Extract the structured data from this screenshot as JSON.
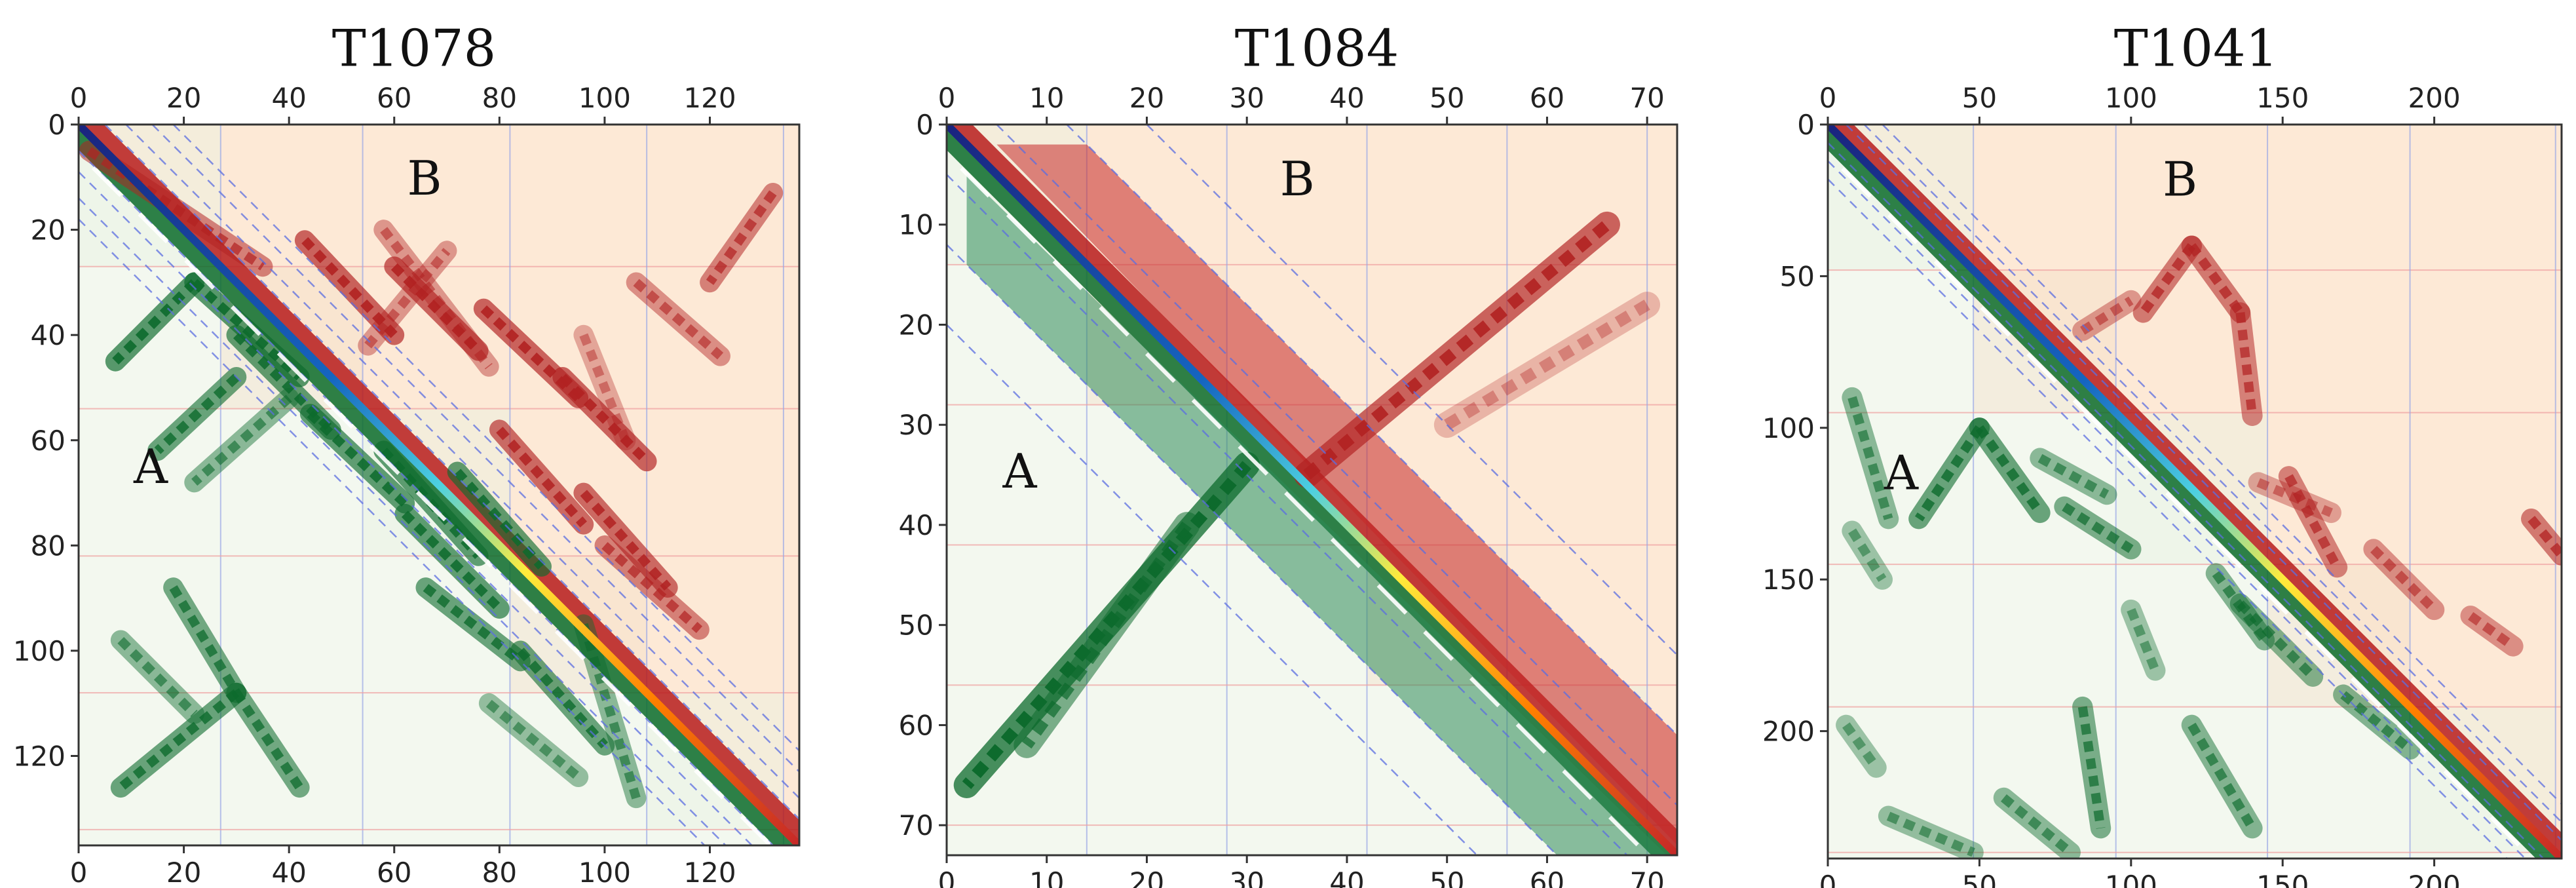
{
  "chart_data": [
    {
      "type": "heatmap",
      "title": "T1078",
      "xlabel": "",
      "ylabel": "",
      "xlim": [
        0,
        137
      ],
      "ylim": [
        0,
        137
      ],
      "x_ticks": [
        0,
        20,
        40,
        60,
        80,
        100,
        120
      ],
      "y_ticks": [
        0,
        20,
        40,
        60,
        80,
        100,
        120
      ],
      "region_labels": {
        "upper": "B",
        "lower": "A"
      },
      "grid": true,
      "offset_diagonals": [
        5,
        9,
        14,
        18
      ],
      "domain_boundaries": [
        27,
        54,
        82,
        108,
        134
      ],
      "upper_contacts": [
        {
          "from": [
            5,
            2
          ],
          "to": [
            27,
            35
          ],
          "w": 0.7
        },
        {
          "from": [
            22,
            43
          ],
          "to": [
            40,
            60
          ],
          "w": 0.9
        },
        {
          "from": [
            27,
            60
          ],
          "to": [
            43,
            76
          ],
          "w": 0.9
        },
        {
          "from": [
            35,
            77
          ],
          "to": [
            52,
            95
          ],
          "w": 0.9
        },
        {
          "from": [
            48,
            92
          ],
          "to": [
            64,
            108
          ],
          "w": 0.9
        },
        {
          "from": [
            58,
            80
          ],
          "to": [
            76,
            96
          ],
          "w": 0.85
        },
        {
          "from": [
            70,
            96
          ],
          "to": [
            88,
            112
          ],
          "w": 0.85
        },
        {
          "from": [
            80,
            100
          ],
          "to": [
            96,
            118
          ],
          "w": 0.7
        },
        {
          "from": [
            20,
            58
          ],
          "to": [
            46,
            78
          ],
          "w": 0.55
        },
        {
          "from": [
            42,
            55
          ],
          "to": [
            24,
            70
          ],
          "w": 0.55
        },
        {
          "from": [
            30,
            106
          ],
          "to": [
            44,
            122
          ],
          "w": 0.6
        },
        {
          "from": [
            13,
            132
          ],
          "to": [
            30,
            120
          ],
          "w": 0.7
        },
        {
          "from": [
            40,
            96
          ],
          "to": [
            60,
            104
          ],
          "w": 0.45
        }
      ],
      "lower_contacts": [
        {
          "from": [
            30,
            22
          ],
          "to": [
            45,
            7
          ],
          "w": 0.9
        },
        {
          "from": [
            30,
            22
          ],
          "to": [
            48,
            42
          ],
          "w": 0.9
        },
        {
          "from": [
            40,
            30
          ],
          "to": [
            58,
            48
          ],
          "w": 0.85
        },
        {
          "from": [
            48,
            30
          ],
          "to": [
            62,
            15
          ],
          "w": 0.8
        },
        {
          "from": [
            55,
            44
          ],
          "to": [
            72,
            62
          ],
          "w": 0.85
        },
        {
          "from": [
            62,
            58
          ],
          "to": [
            82,
            76
          ],
          "w": 0.85
        },
        {
          "from": [
            66,
            72
          ],
          "to": [
            84,
            88
          ],
          "w": 0.85
        },
        {
          "from": [
            74,
            62
          ],
          "to": [
            92,
            80
          ],
          "w": 0.85
        },
        {
          "from": [
            88,
            66
          ],
          "to": [
            102,
            84
          ],
          "w": 0.8
        },
        {
          "from": [
            100,
            84
          ],
          "to": [
            118,
            100
          ],
          "w": 0.8
        },
        {
          "from": [
            95,
            96
          ],
          "to": [
            128,
            106
          ],
          "w": 0.6
        },
        {
          "from": [
            110,
            78
          ],
          "to": [
            124,
            95
          ],
          "w": 0.55
        },
        {
          "from": [
            88,
            18
          ],
          "to": [
            108,
            30
          ],
          "w": 0.75
        },
        {
          "from": [
            108,
            30
          ],
          "to": [
            126,
            8
          ],
          "w": 0.8
        },
        {
          "from": [
            108,
            30
          ],
          "to": [
            126,
            42
          ],
          "w": 0.75
        },
        {
          "from": [
            98,
            8
          ],
          "to": [
            112,
            22
          ],
          "w": 0.6
        },
        {
          "from": [
            52,
            40
          ],
          "to": [
            68,
            22
          ],
          "w": 0.6
        }
      ]
    },
    {
      "type": "heatmap",
      "title": "T1084",
      "xlabel": "",
      "ylabel": "",
      "xlim": [
        0,
        73
      ],
      "ylim": [
        0,
        73
      ],
      "x_ticks": [
        0,
        10,
        20,
        30,
        40,
        50,
        60,
        70
      ],
      "y_ticks": [
        0,
        10,
        20,
        30,
        40,
        50,
        60,
        70
      ],
      "region_labels": {
        "upper": "B",
        "lower": "A"
      },
      "grid": true,
      "offset_diagonals": [
        5,
        12,
        20
      ],
      "domain_boundaries": [
        14,
        28,
        42,
        56,
        70
      ],
      "upper_contacts": [
        {
          "from": [
            35,
            36
          ],
          "to": [
            10,
            66
          ],
          "w": 0.9
        },
        {
          "from": [
            30,
            50
          ],
          "to": [
            18,
            70
          ],
          "w": 0.35
        }
      ],
      "lower_contacts": [
        {
          "from": [
            34,
            30
          ],
          "to": [
            66,
            2
          ],
          "w": 1.0
        },
        {
          "from": [
            40,
            24
          ],
          "to": [
            62,
            8
          ],
          "w": 0.7
        }
      ]
    },
    {
      "type": "heatmap",
      "title": "T1041",
      "xlabel": "",
      "ylabel": "",
      "xlim": [
        0,
        242
      ],
      "ylim": [
        0,
        242
      ],
      "x_ticks": [
        0,
        50,
        100,
        150,
        200
      ],
      "y_ticks": [
        0,
        50,
        100,
        150,
        200
      ],
      "region_labels": {
        "upper": "B",
        "lower": "A"
      },
      "grid": true,
      "offset_diagonals": [
        6,
        12,
        18
      ],
      "domain_boundaries": [
        48,
        95,
        145,
        192,
        240
      ],
      "upper_contacts": [
        {
          "from": [
            40,
            120
          ],
          "to": [
            62,
            104
          ],
          "w": 0.75
        },
        {
          "from": [
            40,
            120
          ],
          "to": [
            62,
            136
          ],
          "w": 0.75
        },
        {
          "from": [
            62,
            136
          ],
          "to": [
            96,
            140
          ],
          "w": 0.7
        },
        {
          "from": [
            68,
            84
          ],
          "to": [
            58,
            100
          ],
          "w": 0.55
        },
        {
          "from": [
            116,
            152
          ],
          "to": [
            146,
            168
          ],
          "w": 0.7
        },
        {
          "from": [
            140,
            180
          ],
          "to": [
            160,
            200
          ],
          "w": 0.6
        },
        {
          "from": [
            130,
            232
          ],
          "to": [
            142,
            242
          ],
          "w": 0.75
        },
        {
          "from": [
            162,
            212
          ],
          "to": [
            172,
            226
          ],
          "w": 0.6
        },
        {
          "from": [
            118,
            142
          ],
          "to": [
            128,
            166
          ],
          "w": 0.5
        }
      ],
      "lower_contacts": [
        {
          "from": [
            90,
            8
          ],
          "to": [
            130,
            20
          ],
          "w": 0.6
        },
        {
          "from": [
            100,
            50
          ],
          "to": [
            130,
            30
          ],
          "w": 0.8
        },
        {
          "from": [
            100,
            50
          ],
          "to": [
            128,
            70
          ],
          "w": 0.8
        },
        {
          "from": [
            126,
            78
          ],
          "to": [
            140,
            100
          ],
          "w": 0.7
        },
        {
          "from": [
            110,
            70
          ],
          "to": [
            122,
            92
          ],
          "w": 0.6
        },
        {
          "from": [
            148,
            128
          ],
          "to": [
            170,
            144
          ],
          "w": 0.65
        },
        {
          "from": [
            158,
            136
          ],
          "to": [
            182,
            160
          ],
          "w": 0.65
        },
        {
          "from": [
            188,
            170
          ],
          "to": [
            206,
            192
          ],
          "w": 0.65
        },
        {
          "from": [
            192,
            84
          ],
          "to": [
            232,
            90
          ],
          "w": 0.7
        },
        {
          "from": [
            198,
            120
          ],
          "to": [
            232,
            140
          ],
          "w": 0.65
        },
        {
          "from": [
            222,
            58
          ],
          "to": [
            240,
            80
          ],
          "w": 0.6
        },
        {
          "from": [
            228,
            20
          ],
          "to": [
            240,
            48
          ],
          "w": 0.55
        },
        {
          "from": [
            134,
            8
          ],
          "to": [
            150,
            18
          ],
          "w": 0.5
        },
        {
          "from": [
            198,
            6
          ],
          "to": [
            212,
            16
          ],
          "w": 0.5
        },
        {
          "from": [
            160,
            100
          ],
          "to": [
            180,
            108
          ],
          "w": 0.5
        }
      ]
    }
  ]
}
